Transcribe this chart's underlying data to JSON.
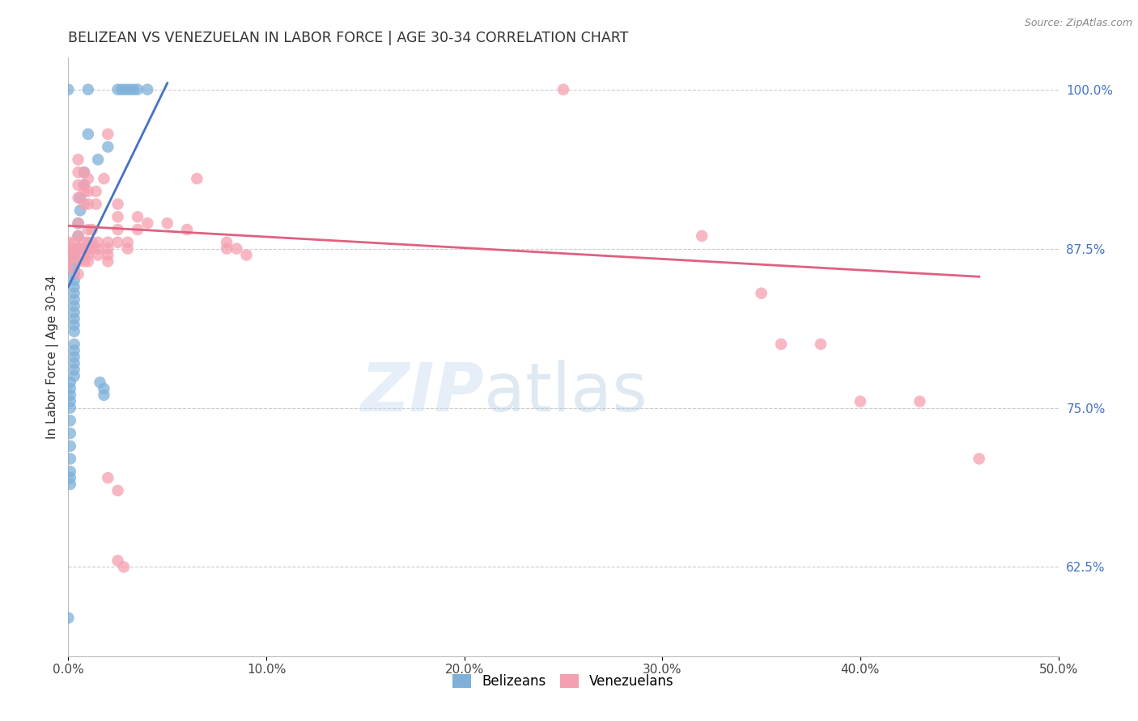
{
  "title": "BELIZEAN VS VENEZUELAN IN LABOR FORCE | AGE 30-34 CORRELATION CHART",
  "source": "Source: ZipAtlas.com",
  "xlim": [
    0.0,
    0.5
  ],
  "ylim": [
    0.555,
    1.025
  ],
  "ylabel_left": "In Labor Force | Age 30-34",
  "blue_color": "#7EB0D9",
  "pink_color": "#F5A0B0",
  "blue_line_color": "#4472C4",
  "pink_line_color": "#E06080",
  "grid_color": "#CCCCCC",
  "background_color": "#FFFFFF",
  "title_color": "#333333",
  "right_axis_color": "#4472C4",
  "bottom_axis_color": "#444444",
  "xticks": [
    0.0,
    0.1,
    0.2,
    0.3,
    0.4,
    0.5
  ],
  "xticklabels": [
    "0.0%",
    "10.0%",
    "20.0%",
    "30.0%",
    "40.0%",
    "50.0%"
  ],
  "yticks_right": [
    1.0,
    0.875,
    0.75,
    0.625
  ],
  "yticklabels_right": [
    "100.0%",
    "87.5%",
    "75.0%",
    "62.5%"
  ],
  "blue_line_x": [
    0.0,
    0.05
  ],
  "blue_line_y": [
    0.845,
    1.005
  ],
  "pink_line_x": [
    0.0,
    0.46
  ],
  "pink_line_y": [
    0.893,
    0.853
  ],
  "blue_scatter": [
    [
      0.0,
      1.0
    ],
    [
      0.01,
      1.0
    ],
    [
      0.025,
      1.0
    ],
    [
      0.027,
      1.0
    ],
    [
      0.029,
      1.0
    ],
    [
      0.031,
      1.0
    ],
    [
      0.033,
      1.0
    ],
    [
      0.035,
      1.0
    ],
    [
      0.04,
      1.0
    ],
    [
      0.01,
      0.965
    ],
    [
      0.02,
      0.955
    ],
    [
      0.015,
      0.945
    ],
    [
      0.008,
      0.935
    ],
    [
      0.008,
      0.925
    ],
    [
      0.006,
      0.915
    ],
    [
      0.006,
      0.905
    ],
    [
      0.005,
      0.895
    ],
    [
      0.005,
      0.885
    ],
    [
      0.005,
      0.875
    ],
    [
      0.003,
      0.87
    ],
    [
      0.003,
      0.865
    ],
    [
      0.003,
      0.86
    ],
    [
      0.003,
      0.855
    ],
    [
      0.003,
      0.85
    ],
    [
      0.003,
      0.845
    ],
    [
      0.003,
      0.84
    ],
    [
      0.003,
      0.835
    ],
    [
      0.003,
      0.83
    ],
    [
      0.003,
      0.825
    ],
    [
      0.003,
      0.82
    ],
    [
      0.003,
      0.815
    ],
    [
      0.003,
      0.81
    ],
    [
      0.003,
      0.8
    ],
    [
      0.003,
      0.795
    ],
    [
      0.003,
      0.79
    ],
    [
      0.003,
      0.785
    ],
    [
      0.003,
      0.78
    ],
    [
      0.003,
      0.775
    ],
    [
      0.001,
      0.77
    ],
    [
      0.001,
      0.765
    ],
    [
      0.001,
      0.76
    ],
    [
      0.001,
      0.755
    ],
    [
      0.001,
      0.75
    ],
    [
      0.001,
      0.74
    ],
    [
      0.001,
      0.73
    ],
    [
      0.001,
      0.72
    ],
    [
      0.001,
      0.71
    ],
    [
      0.001,
      0.7
    ],
    [
      0.001,
      0.695
    ],
    [
      0.001,
      0.69
    ],
    [
      0.016,
      0.77
    ],
    [
      0.018,
      0.765
    ],
    [
      0.018,
      0.76
    ],
    [
      0.0,
      0.585
    ]
  ],
  "pink_scatter": [
    [
      0.0,
      0.88
    ],
    [
      0.0,
      0.875
    ],
    [
      0.0,
      0.87
    ],
    [
      0.0,
      0.865
    ],
    [
      0.0,
      0.86
    ],
    [
      0.003,
      0.88
    ],
    [
      0.003,
      0.875
    ],
    [
      0.003,
      0.87
    ],
    [
      0.005,
      0.945
    ],
    [
      0.005,
      0.935
    ],
    [
      0.005,
      0.925
    ],
    [
      0.005,
      0.915
    ],
    [
      0.005,
      0.895
    ],
    [
      0.005,
      0.885
    ],
    [
      0.005,
      0.875
    ],
    [
      0.005,
      0.865
    ],
    [
      0.005,
      0.855
    ],
    [
      0.008,
      0.935
    ],
    [
      0.008,
      0.925
    ],
    [
      0.008,
      0.92
    ],
    [
      0.008,
      0.91
    ],
    [
      0.008,
      0.88
    ],
    [
      0.008,
      0.875
    ],
    [
      0.008,
      0.87
    ],
    [
      0.008,
      0.865
    ],
    [
      0.01,
      0.93
    ],
    [
      0.01,
      0.92
    ],
    [
      0.01,
      0.91
    ],
    [
      0.01,
      0.89
    ],
    [
      0.01,
      0.88
    ],
    [
      0.01,
      0.875
    ],
    [
      0.01,
      0.87
    ],
    [
      0.01,
      0.865
    ],
    [
      0.012,
      0.89
    ],
    [
      0.012,
      0.88
    ],
    [
      0.012,
      0.875
    ],
    [
      0.014,
      0.92
    ],
    [
      0.014,
      0.91
    ],
    [
      0.015,
      0.88
    ],
    [
      0.015,
      0.875
    ],
    [
      0.015,
      0.87
    ],
    [
      0.018,
      0.93
    ],
    [
      0.02,
      0.965
    ],
    [
      0.02,
      0.88
    ],
    [
      0.02,
      0.875
    ],
    [
      0.02,
      0.87
    ],
    [
      0.02,
      0.865
    ],
    [
      0.025,
      0.91
    ],
    [
      0.025,
      0.9
    ],
    [
      0.025,
      0.89
    ],
    [
      0.025,
      0.88
    ],
    [
      0.03,
      0.88
    ],
    [
      0.03,
      0.875
    ],
    [
      0.035,
      0.9
    ],
    [
      0.035,
      0.89
    ],
    [
      0.04,
      0.895
    ],
    [
      0.05,
      0.895
    ],
    [
      0.06,
      0.89
    ],
    [
      0.065,
      0.93
    ],
    [
      0.08,
      0.88
    ],
    [
      0.08,
      0.875
    ],
    [
      0.085,
      0.875
    ],
    [
      0.09,
      0.87
    ],
    [
      0.25,
      1.0
    ],
    [
      0.32,
      0.885
    ],
    [
      0.35,
      0.84
    ],
    [
      0.36,
      0.8
    ],
    [
      0.38,
      0.8
    ],
    [
      0.4,
      0.755
    ],
    [
      0.43,
      0.755
    ],
    [
      0.46,
      0.71
    ],
    [
      0.02,
      0.695
    ],
    [
      0.025,
      0.685
    ],
    [
      0.025,
      0.63
    ],
    [
      0.028,
      0.625
    ]
  ]
}
